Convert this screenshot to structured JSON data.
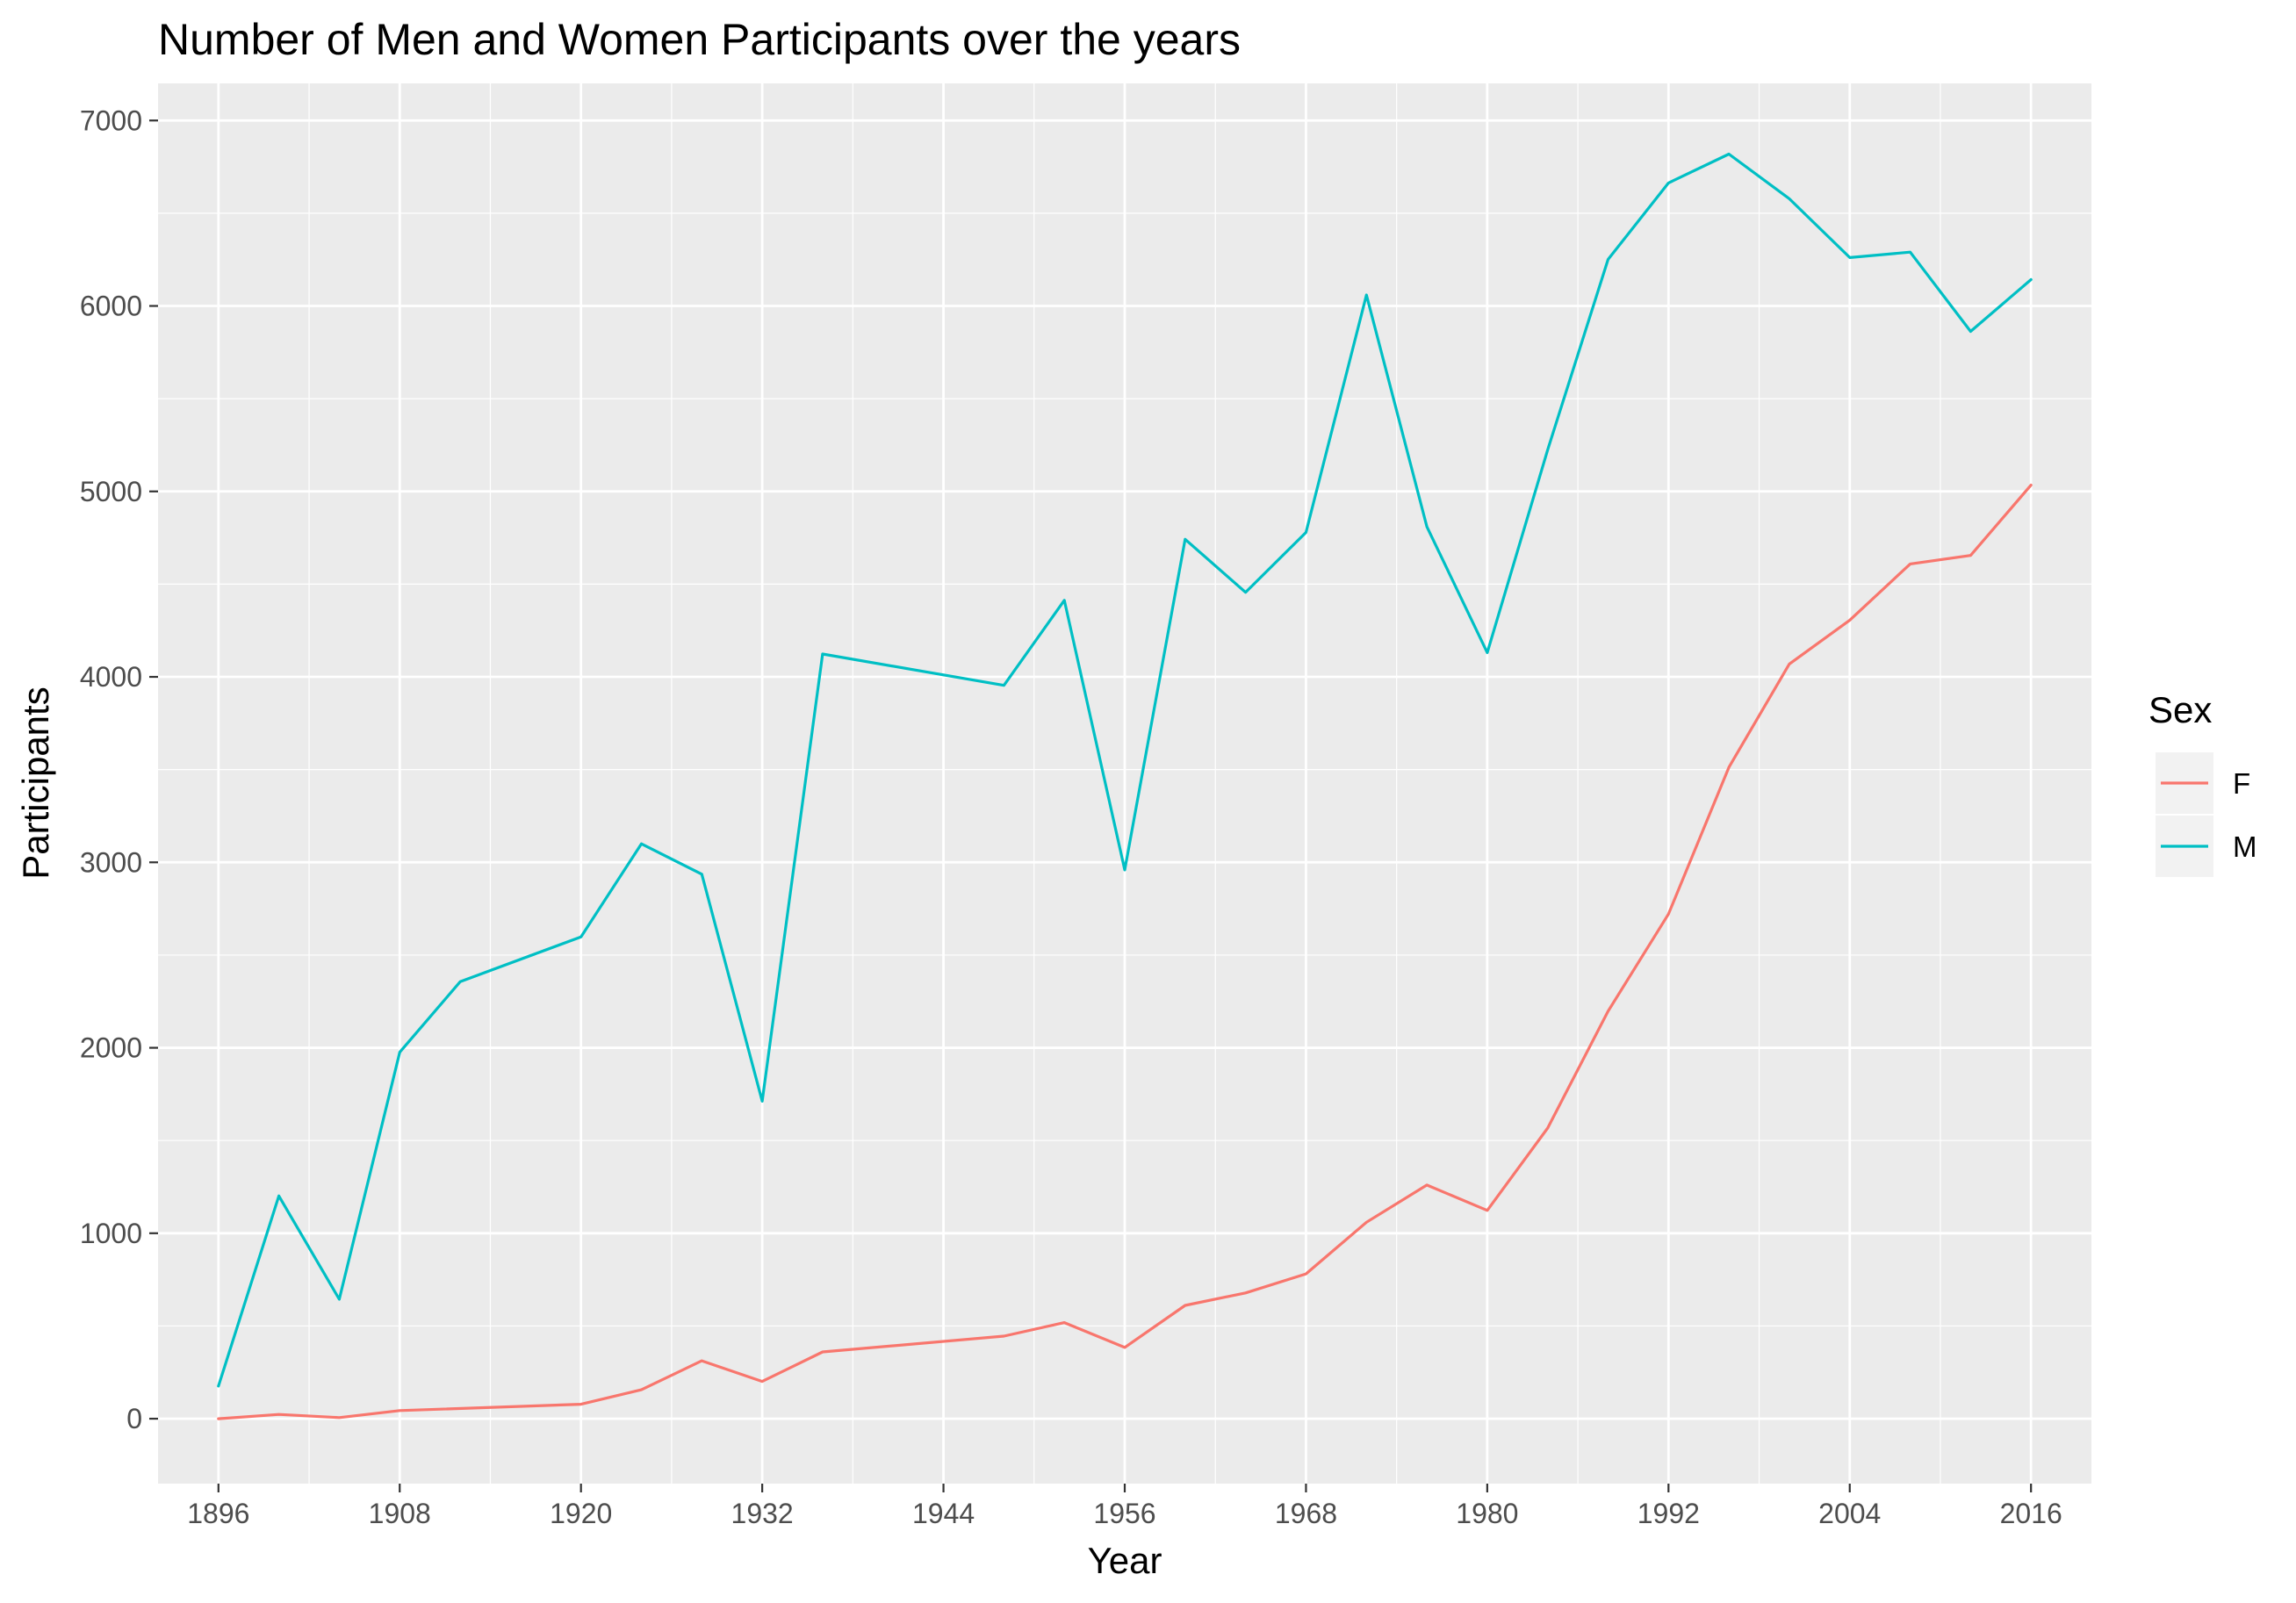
{
  "chart_data": {
    "type": "line",
    "title": "Number of Men and Women Participants over the years",
    "xlabel": "Year",
    "ylabel": "Participants",
    "xlim": [
      1892,
      2020
    ],
    "ylim": [
      -350,
      7200
    ],
    "x_ticks": [
      1896,
      1908,
      1920,
      1932,
      1944,
      1956,
      1968,
      1980,
      1992,
      2004,
      2016
    ],
    "x_tick_labels": [
      "1896",
      "1908",
      "1920",
      "1932",
      "1944",
      "1956",
      "1968",
      "1980",
      "1992",
      "2004",
      "2016"
    ],
    "y_ticks": [
      0,
      1000,
      2000,
      3000,
      4000,
      5000,
      6000,
      7000
    ],
    "y_tick_labels": [
      "0",
      "1000",
      "2000",
      "3000",
      "4000",
      "5000",
      "6000",
      "7000"
    ],
    "grid": true,
    "legend": {
      "title": "Sex",
      "placement": "right"
    },
    "series": [
      {
        "name": "F",
        "color": "#F8766D",
        "points": [
          [
            1896,
            0
          ],
          [
            1900,
            23
          ],
          [
            1904,
            6
          ],
          [
            1908,
            44
          ],
          [
            1920,
            78
          ],
          [
            1924,
            156
          ],
          [
            1928,
            312
          ],
          [
            1932,
            201
          ],
          [
            1936,
            360
          ],
          [
            1948,
            445
          ],
          [
            1952,
            518
          ],
          [
            1956,
            384
          ],
          [
            1960,
            611
          ],
          [
            1964,
            678
          ],
          [
            1968,
            781
          ],
          [
            1972,
            1059
          ],
          [
            1976,
            1260
          ],
          [
            1980,
            1123
          ],
          [
            1984,
            1567
          ],
          [
            1988,
            2197
          ],
          [
            1992,
            2721
          ],
          [
            1996,
            3512
          ],
          [
            2000,
            4069
          ],
          [
            2004,
            4306
          ],
          [
            2008,
            4609
          ],
          [
            2012,
            4655
          ],
          [
            2016,
            5034
          ]
        ]
      },
      {
        "name": "M",
        "color": "#00BFC4",
        "points": [
          [
            1896,
            176
          ],
          [
            1900,
            1201
          ],
          [
            1904,
            644
          ],
          [
            1908,
            1976
          ],
          [
            1912,
            2356
          ],
          [
            1920,
            2598
          ],
          [
            1924,
            3100
          ],
          [
            1928,
            2936
          ],
          [
            1932,
            1712
          ],
          [
            1936,
            4123
          ],
          [
            1948,
            3954
          ],
          [
            1952,
            4413
          ],
          [
            1956,
            2959
          ],
          [
            1960,
            4742
          ],
          [
            1964,
            4456
          ],
          [
            1968,
            4779
          ],
          [
            1972,
            6059
          ],
          [
            1976,
            4810
          ],
          [
            1980,
            4131
          ],
          [
            1984,
            5224
          ],
          [
            1988,
            6251
          ],
          [
            1992,
            6663
          ],
          [
            1996,
            6819
          ],
          [
            2000,
            6578
          ],
          [
            2004,
            6261
          ],
          [
            2008,
            6290
          ],
          [
            2012,
            5863
          ],
          [
            2016,
            6142
          ]
        ]
      }
    ]
  },
  "colors": {
    "panel_background": "#EBEBEB",
    "grid_line": "#FFFFFF",
    "tick_text": "#4D4D4D",
    "legend_key_background": "#F2F2F2"
  }
}
